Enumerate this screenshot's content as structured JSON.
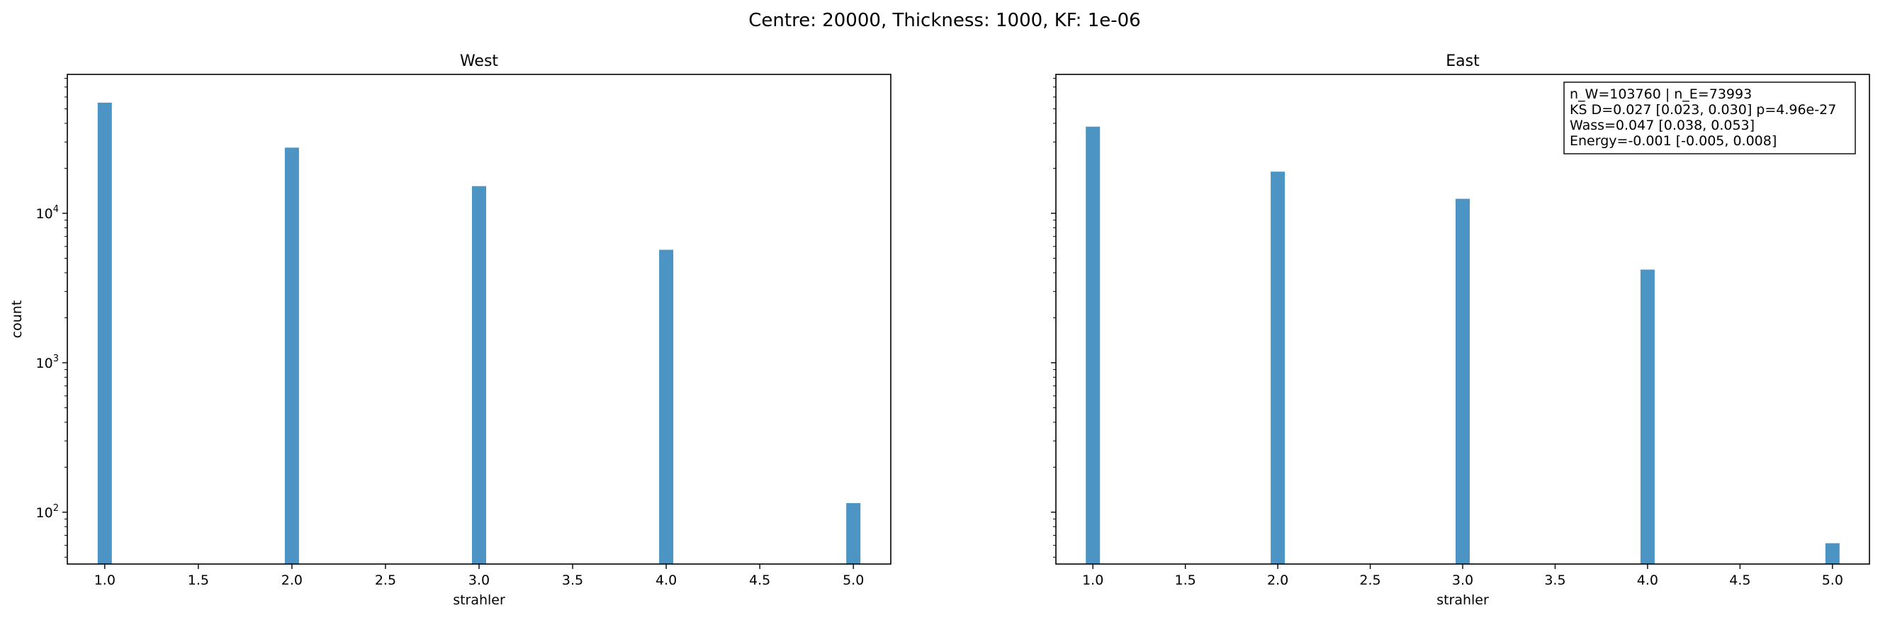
{
  "figure": {
    "suptitle": "Centre: 20000, Thickness: 1000, KF: 1e-06"
  },
  "colors": {
    "bar": "#4c94c4",
    "axis": "#000000",
    "background": "#ffffff"
  },
  "chart_data": [
    {
      "type": "bar",
      "title": "West",
      "xlabel": "strahler",
      "ylabel": "count",
      "yscale": "log",
      "xlim": [
        0.8,
        5.2
      ],
      "ylim": [
        45,
        85000
      ],
      "grid": false,
      "xticks": [
        1.0,
        1.5,
        2.0,
        2.5,
        3.0,
        3.5,
        4.0,
        4.5,
        5.0
      ],
      "xtick_labels": [
        "1.0",
        "1.5",
        "2.0",
        "2.5",
        "3.0",
        "3.5",
        "4.0",
        "4.5",
        "5.0"
      ],
      "yticks": [
        100,
        1000,
        10000
      ],
      "ytick_labels": [
        [
          "10",
          "2"
        ],
        [
          "10",
          "3"
        ],
        [
          "10",
          "4"
        ]
      ],
      "x": [
        1.0,
        2.0,
        3.0,
        4.0,
        5.0
      ],
      "values": [
        55000,
        27500,
        15200,
        5700,
        115
      ]
    },
    {
      "type": "bar",
      "title": "East",
      "xlabel": "strahler",
      "ylabel": "",
      "yscale": "log",
      "xlim": [
        0.8,
        5.2
      ],
      "ylim": [
        45,
        85000
      ],
      "grid": false,
      "xticks": [
        1.0,
        1.5,
        2.0,
        2.5,
        3.0,
        3.5,
        4.0,
        4.5,
        5.0
      ],
      "xtick_labels": [
        "1.0",
        "1.5",
        "2.0",
        "2.5",
        "3.0",
        "3.5",
        "4.0",
        "4.5",
        "5.0"
      ],
      "yticks": [
        100,
        1000,
        10000
      ],
      "ytick_labels": [],
      "x": [
        1.0,
        2.0,
        3.0,
        4.0,
        5.0
      ],
      "values": [
        38000,
        19000,
        12500,
        4200,
        62
      ],
      "annotation": {
        "lines": [
          "n_W=103760 | n_E=73993",
          "KS D=0.027 [0.023, 0.030]  p=4.96e-27",
          "Wass=0.047 [0.038, 0.053]",
          "Energy=-0.001 [-0.005, 0.008]"
        ],
        "placement": "top-right"
      }
    }
  ]
}
